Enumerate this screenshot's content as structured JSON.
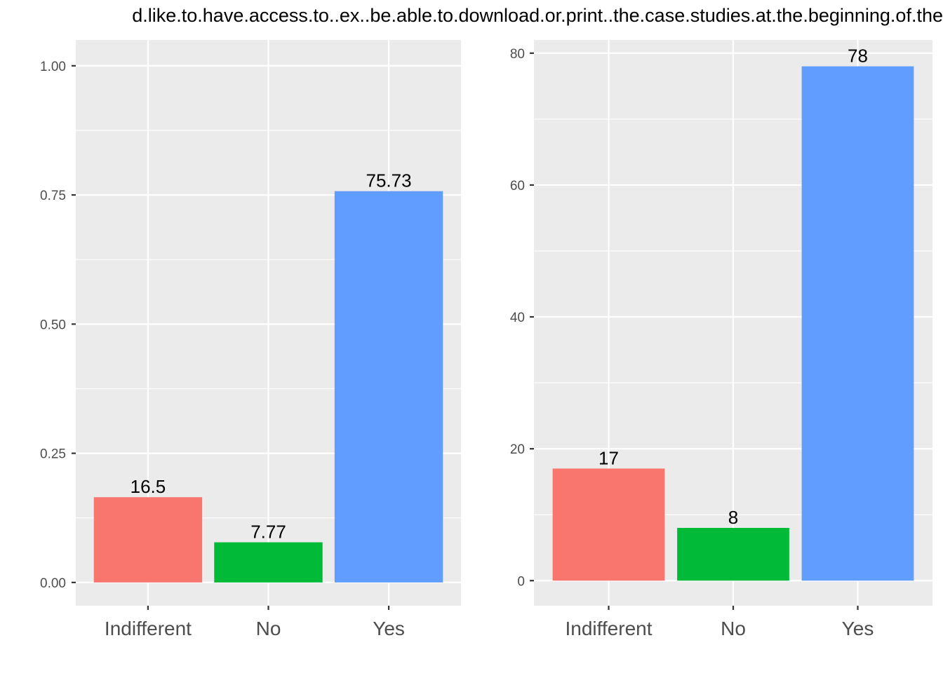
{
  "title": "d.like.to.have.access.to..ex..be.able.to.download.or.print..the.case.studies.at.the.beginning.of.the",
  "chart_data": [
    {
      "type": "bar",
      "categories": [
        "Indifferent",
        "No",
        "Yes"
      ],
      "values": [
        0.165,
        0.0777,
        0.7573
      ],
      "data_labels": [
        "16.5",
        "7.77",
        "75.73"
      ],
      "colors": [
        "#F8766D",
        "#00BA38",
        "#619CFF"
      ],
      "ylim": [
        -0.045,
        1.05
      ],
      "yticks": [
        0,
        0.25,
        0.5,
        0.75,
        1.0
      ],
      "ytick_labels": [
        "0.00",
        "0.25",
        "0.50",
        "0.75",
        "1.00"
      ],
      "grid": true,
      "legend": "none",
      "xlabel": "",
      "ylabel": ""
    },
    {
      "type": "bar",
      "categories": [
        "Indifferent",
        "No",
        "Yes"
      ],
      "values": [
        17,
        8,
        78
      ],
      "data_labels": [
        "17",
        "8",
        "78"
      ],
      "colors": [
        "#F8766D",
        "#00BA38",
        "#619CFF"
      ],
      "ylim": [
        -3.8,
        82
      ],
      "yticks": [
        0,
        20,
        40,
        60,
        80
      ],
      "ytick_labels": [
        "0",
        "20",
        "40",
        "60",
        "80"
      ],
      "grid": true,
      "legend": "none",
      "xlabel": "",
      "ylabel": ""
    }
  ]
}
